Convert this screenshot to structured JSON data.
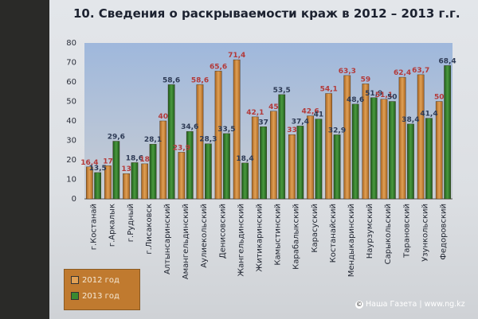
{
  "slide": {
    "title": "10. Сведения о раскрываемости краж в 2012 – 2013 г.г."
  },
  "chart_data": {
    "type": "bar",
    "title": "10. Сведения о раскрываемости краж в 2012 – 2013 г.г.",
    "ylim": [
      0,
      80
    ],
    "yticks": [
      0,
      10,
      20,
      30,
      40,
      50,
      60,
      70,
      80
    ],
    "grid": false,
    "legend_placement": "bottom-left",
    "categories": [
      "г.Костанай",
      "г.Аркалык",
      "г.Рудный",
      "г.Лисаковск",
      "Алтынсаринский",
      "Амангельдинский",
      "Аулиекольский",
      "Денисовский",
      "Жангельдинский",
      "Житикаринский",
      "Камыстинский",
      "Карабалыкский",
      "Карасуский",
      "Костанайский",
      "Мендыкаринский",
      "Наурзумский",
      "Сарыкольский",
      "Тарановский",
      "Узункольский",
      "Федоровский"
    ],
    "series": [
      {
        "name": "2012 год",
        "color": "#c8802e",
        "values": [
          16.4,
          17,
          13,
          18,
          40,
          23.9,
          58.6,
          65.6,
          71.4,
          42.1,
          45,
          33,
          42.6,
          54.1,
          63.3,
          59,
          51.1,
          62.4,
          63.7,
          50
        ]
      },
      {
        "name": "2013 год",
        "color": "#2f7a2a",
        "values": [
          13.5,
          29.6,
          18.6,
          28.1,
          58.6,
          34.6,
          28.3,
          33.5,
          18.4,
          37,
          53.5,
          37.4,
          41,
          32.9,
          48.6,
          51.9,
          50,
          38.4,
          41.4,
          68.4
        ]
      }
    ],
    "value_labels_2012": [
      "16,4",
      "17",
      "13",
      "18",
      "40",
      "23,9",
      "58,6",
      "65,6",
      "71,4",
      "42,1",
      "45",
      "33",
      "42,6",
      "54,1",
      "63,3",
      "59",
      "51,1",
      "62,4",
      "63,7",
      "50"
    ],
    "value_labels_2013": [
      "13,5",
      "29,6",
      "18,6",
      "28,1",
      "58,6",
      "34,6",
      "28,3",
      "33,5",
      "18,4",
      "37",
      "53,5",
      "37,4",
      "41",
      "32,9",
      "48,6",
      "51,9",
      "50",
      "38,4",
      "41,4",
      "68,4"
    ]
  },
  "watermark": "© Наша Газета | www.ng.kz",
  "colors": {
    "plot_top": "#9fb8dc",
    "plot_bottom": "#c9cdd3",
    "bar_2012": "#c8802e",
    "bar_2013": "#2f7a2a",
    "label_2012": "#b33a3a",
    "label_2013": "#2d3a55"
  }
}
